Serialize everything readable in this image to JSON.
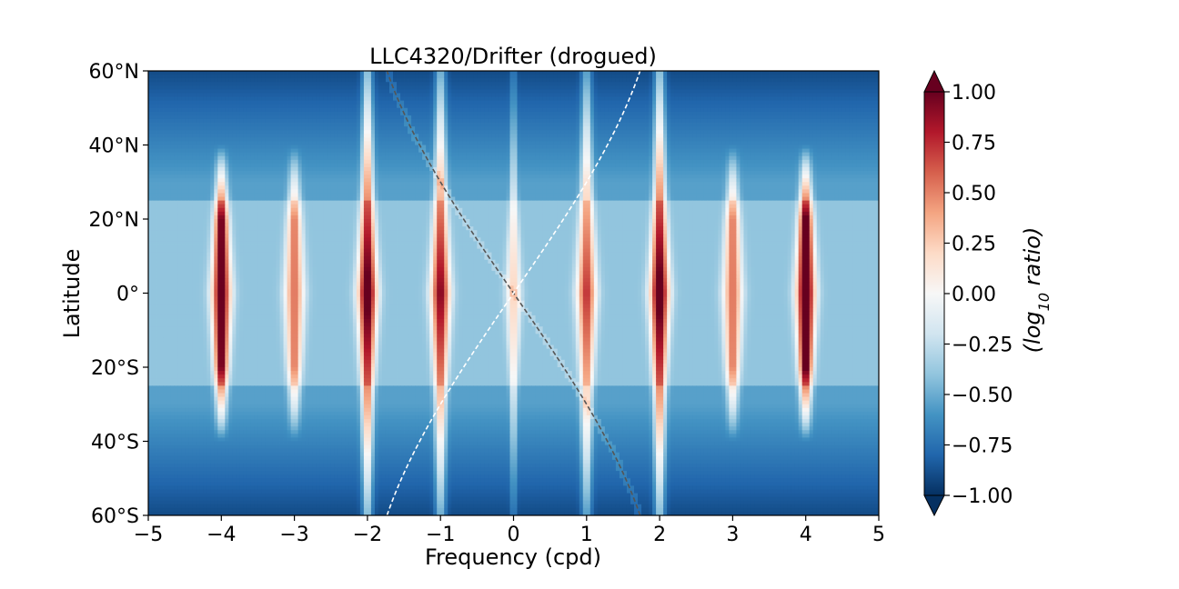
{
  "chart_data": {
    "type": "heatmap",
    "title": "LLC4320/Drifter (drogued)",
    "xlabel": "Frequency (cpd)",
    "ylabel": "Latitude",
    "xlim": [
      -5,
      5
    ],
    "ylim": [
      -60,
      60
    ],
    "x_ticks": [
      -5,
      -4,
      -3,
      -2,
      -1,
      0,
      1,
      2,
      3,
      4,
      5
    ],
    "x_tick_labels": [
      "−5",
      "−4",
      "−3",
      "−2",
      "−1",
      "0",
      "1",
      "2",
      "3",
      "4",
      "5"
    ],
    "y_ticks": [
      60,
      40,
      20,
      0,
      -20,
      -40,
      -60
    ],
    "y_tick_labels": [
      "60°N",
      "40°N",
      "20°N",
      "0°",
      "20°S",
      "40°S",
      "60°S"
    ],
    "colorbar": {
      "label_main": "(log",
      "label_sub": "10",
      "label_tail": " ratio)",
      "vmin": -1.0,
      "vmax": 1.0,
      "extend": "both",
      "colormap": "RdBu_r",
      "ticks": [
        1.0,
        0.75,
        0.5,
        0.25,
        0.0,
        -0.25,
        -0.5,
        -0.75,
        -1.0
      ],
      "tick_labels": [
        "1.00",
        "0.75",
        "0.50",
        "0.25",
        "0.00",
        "−0.25",
        "−0.50",
        "−0.75",
        "−1.00"
      ]
    },
    "tidal_bands_cpd": [
      -4,
      -3,
      -2,
      -1,
      0,
      1,
      2,
      3,
      4
    ],
    "band_peak_values": {
      "-4": 0.9,
      "-3": 0.4,
      "-2": 1.0,
      "-1": 0.8,
      "0": 0.1,
      "1": 0.6,
      "2": 1.0,
      "3": 0.4,
      "4": 1.0
    },
    "background_value": -0.55,
    "inertial_curves": [
      {
        "style": "dashed",
        "color": "#555555",
        "note": "negative inertial frequency, -2 sin(lat)"
      },
      {
        "style": "dashed",
        "color": "#ffffff",
        "note": "positive inertial frequency, +2 sin(lat)"
      }
    ]
  }
}
